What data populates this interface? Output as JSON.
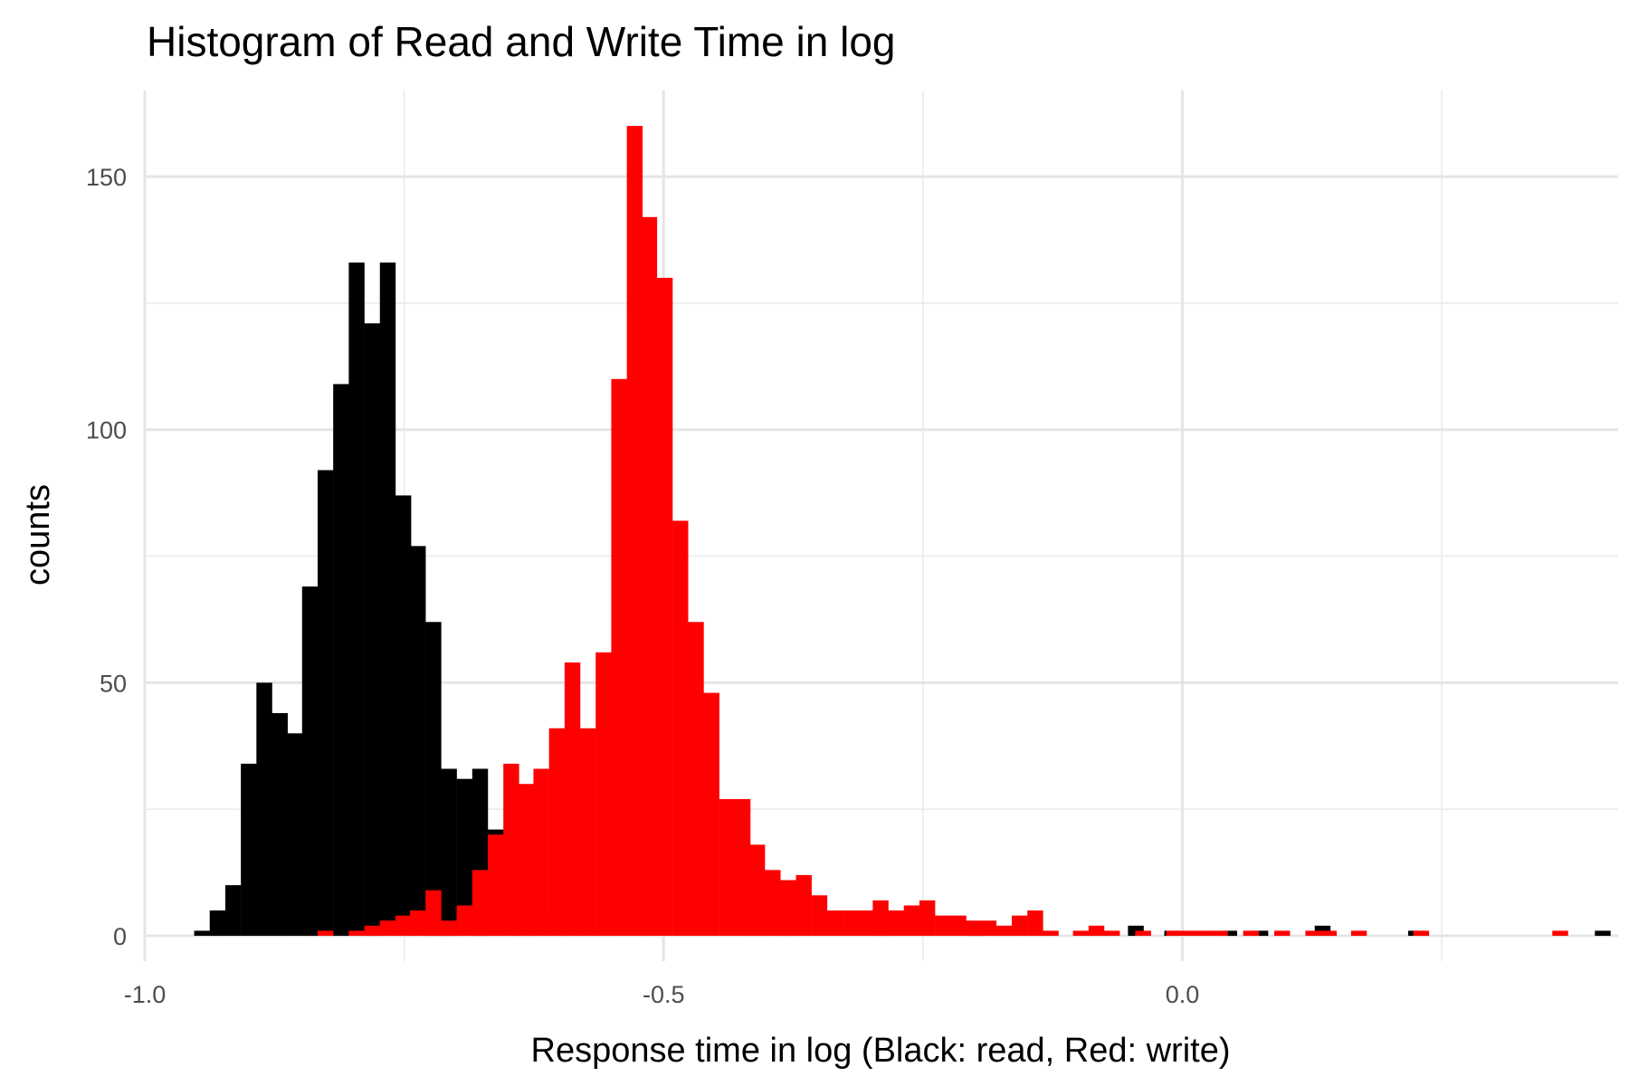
{
  "chart_data": {
    "type": "histogram",
    "title": "Histogram of Read and Write Time in log",
    "xlabel": "Response time in log (Black: read, Red: write)",
    "ylabel": "counts",
    "xlim": [
      -1.0,
      0.42
    ],
    "ylim": [
      -5,
      167
    ],
    "x_ticks": [
      -1.0,
      -0.5,
      0.0
    ],
    "x_tick_labels": [
      "-1.0",
      "-0.5",
      "0.0"
    ],
    "x_minor_ticks": [
      -0.75,
      -0.25,
      0.25
    ],
    "y_ticks": [
      0,
      50,
      100,
      150
    ],
    "y_tick_labels": [
      "0",
      "50",
      "100",
      "150"
    ],
    "y_minor_ticks": [
      25,
      75,
      125
    ],
    "grid": true,
    "bin_width": 0.01485,
    "series": [
      {
        "color": "#000000",
        "bins": [
          {
            "x": -0.945,
            "y": 1
          },
          {
            "x": -0.93,
            "y": 5
          },
          {
            "x": -0.915,
            "y": 10
          },
          {
            "x": -0.9,
            "y": 34
          },
          {
            "x": -0.885,
            "y": 50
          },
          {
            "x": -0.87,
            "y": 44
          },
          {
            "x": -0.856,
            "y": 40
          },
          {
            "x": -0.841,
            "y": 69
          },
          {
            "x": -0.826,
            "y": 92
          },
          {
            "x": -0.811,
            "y": 109
          },
          {
            "x": -0.796,
            "y": 133
          },
          {
            "x": -0.781,
            "y": 121
          },
          {
            "x": -0.766,
            "y": 133
          },
          {
            "x": -0.751,
            "y": 87
          },
          {
            "x": -0.737,
            "y": 77
          },
          {
            "x": -0.722,
            "y": 62
          },
          {
            "x": -0.707,
            "y": 33
          },
          {
            "x": -0.692,
            "y": 31
          },
          {
            "x": -0.677,
            "y": 33
          },
          {
            "x": -0.662,
            "y": 21
          },
          {
            "x": -0.647,
            "y": 11
          },
          {
            "x": -0.633,
            "y": 5
          },
          {
            "x": -0.618,
            "y": 4
          },
          {
            "x": -0.603,
            "y": 2
          },
          {
            "x": -0.588,
            "y": 2
          },
          {
            "x": -0.573,
            "y": 1
          },
          {
            "x": -0.558,
            "y": 1
          },
          {
            "x": -0.41,
            "y": 8
          },
          {
            "x": -0.38,
            "y": 6
          },
          {
            "x": -0.29,
            "y": 3
          },
          {
            "x": -0.2,
            "y": 2
          },
          {
            "x": -0.17,
            "y": 1
          },
          {
            "x": -0.14,
            "y": 1
          },
          {
            "x": -0.08,
            "y": 1
          },
          {
            "x": -0.045,
            "y": 2
          },
          {
            "x": -0.01,
            "y": 1
          },
          {
            "x": 0.045,
            "y": 1
          },
          {
            "x": 0.075,
            "y": 1
          },
          {
            "x": 0.135,
            "y": 2
          },
          {
            "x": 0.225,
            "y": 1
          },
          {
            "x": 0.405,
            "y": 1
          }
        ]
      },
      {
        "color": "#ff0000",
        "bins": [
          {
            "x": -0.826,
            "y": 1
          },
          {
            "x": -0.796,
            "y": 1
          },
          {
            "x": -0.781,
            "y": 2
          },
          {
            "x": -0.766,
            "y": 3
          },
          {
            "x": -0.751,
            "y": 4
          },
          {
            "x": -0.737,
            "y": 5
          },
          {
            "x": -0.722,
            "y": 9
          },
          {
            "x": -0.707,
            "y": 3
          },
          {
            "x": -0.692,
            "y": 6
          },
          {
            "x": -0.677,
            "y": 13
          },
          {
            "x": -0.662,
            "y": 20
          },
          {
            "x": -0.647,
            "y": 34
          },
          {
            "x": -0.633,
            "y": 30
          },
          {
            "x": -0.618,
            "y": 33
          },
          {
            "x": -0.603,
            "y": 41
          },
          {
            "x": -0.588,
            "y": 54
          },
          {
            "x": -0.573,
            "y": 41
          },
          {
            "x": -0.558,
            "y": 56
          },
          {
            "x": -0.543,
            "y": 110
          },
          {
            "x": -0.528,
            "y": 160
          },
          {
            "x": -0.514,
            "y": 142
          },
          {
            "x": -0.499,
            "y": 130
          },
          {
            "x": -0.484,
            "y": 82
          },
          {
            "x": -0.469,
            "y": 62
          },
          {
            "x": -0.454,
            "y": 48
          },
          {
            "x": -0.439,
            "y": 27
          },
          {
            "x": -0.424,
            "y": 27
          },
          {
            "x": -0.41,
            "y": 18
          },
          {
            "x": -0.395,
            "y": 13
          },
          {
            "x": -0.38,
            "y": 11
          },
          {
            "x": -0.365,
            "y": 12
          },
          {
            "x": -0.35,
            "y": 8
          },
          {
            "x": -0.335,
            "y": 5
          },
          {
            "x": -0.32,
            "y": 5
          },
          {
            "x": -0.305,
            "y": 5
          },
          {
            "x": -0.291,
            "y": 7
          },
          {
            "x": -0.276,
            "y": 5
          },
          {
            "x": -0.261,
            "y": 6
          },
          {
            "x": -0.246,
            "y": 7
          },
          {
            "x": -0.231,
            "y": 4
          },
          {
            "x": -0.216,
            "y": 4
          },
          {
            "x": -0.201,
            "y": 3
          },
          {
            "x": -0.187,
            "y": 3
          },
          {
            "x": -0.172,
            "y": 2
          },
          {
            "x": -0.157,
            "y": 4
          },
          {
            "x": -0.142,
            "y": 5
          },
          {
            "x": -0.127,
            "y": 1
          },
          {
            "x": -0.098,
            "y": 1
          },
          {
            "x": -0.083,
            "y": 2
          },
          {
            "x": -0.068,
            "y": 1
          },
          {
            "x": -0.038,
            "y": 1
          },
          {
            "x": -0.008,
            "y": 1
          },
          {
            "x": 0.007,
            "y": 1
          },
          {
            "x": 0.022,
            "y": 1
          },
          {
            "x": 0.036,
            "y": 1
          },
          {
            "x": 0.066,
            "y": 1
          },
          {
            "x": 0.096,
            "y": 1
          },
          {
            "x": 0.126,
            "y": 1
          },
          {
            "x": 0.141,
            "y": 1
          },
          {
            "x": 0.17,
            "y": 1
          },
          {
            "x": 0.23,
            "y": 1
          },
          {
            "x": 0.364,
            "y": 1
          }
        ]
      }
    ]
  }
}
